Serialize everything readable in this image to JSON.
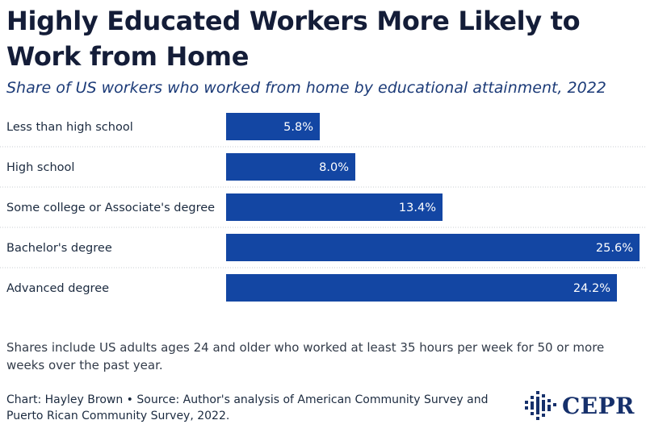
{
  "title": "Highly Educated Workers More Likely to Work from Home",
  "subtitle": "Share of US workers who worked from home by educational attainment, 2022",
  "note": "Shares include US adults ages 24 and older who worked at least 35 hours per week for 50 or more weeks over the past year.",
  "source": "Chart: Hayley Brown • Source: Author's analysis of American Community Survey and Puerto Rican Community Survey, 2022.",
  "logo": {
    "text": "CEPR",
    "icon": "cepr-logo-mark"
  },
  "colors": {
    "bar": "#1346a3",
    "grid": "#c8ccd2",
    "title": "#141d38",
    "subtitle": "#1c3b78"
  },
  "chart_data": {
    "type": "bar",
    "orientation": "horizontal",
    "categories": [
      "Less than high school",
      "High school",
      "Some college or Associate's degree",
      "Bachelor's degree",
      "Advanced degree"
    ],
    "values": [
      5.8,
      8.0,
      13.4,
      25.6,
      24.2
    ],
    "value_labels": [
      "5.8%",
      "8.0%",
      "13.4%",
      "25.6%",
      "24.2%"
    ],
    "unit": "%",
    "xlim": [
      0,
      25.6
    ],
    "grid": false,
    "legend": "none"
  }
}
